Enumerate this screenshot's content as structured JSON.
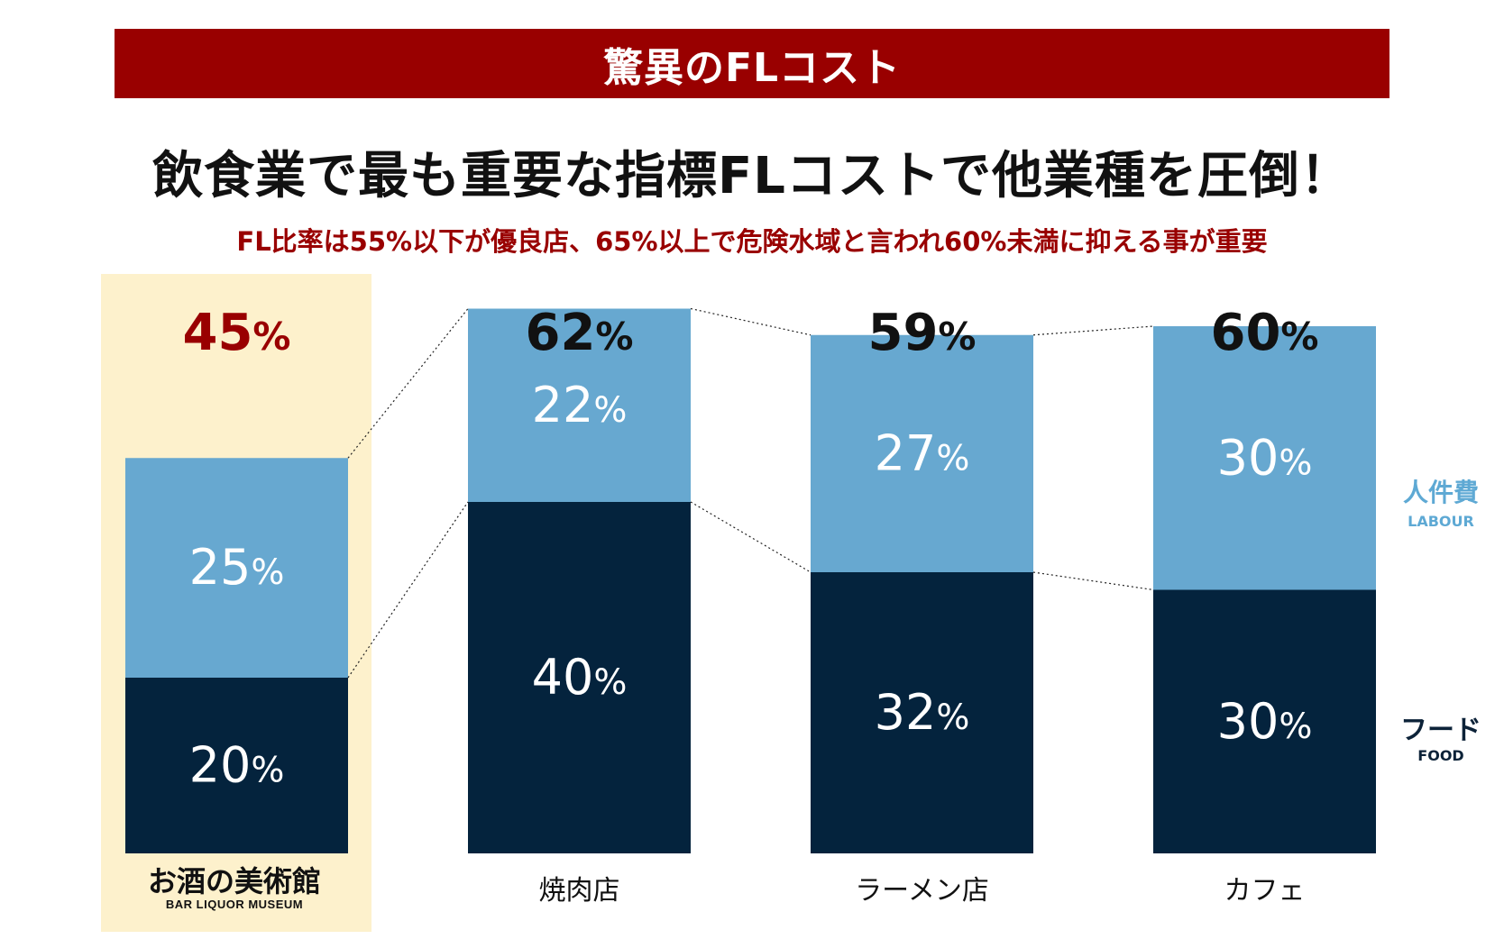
{
  "banner": {
    "title": "驚異のFLコスト"
  },
  "headline": "飲食業で最も重要な指標FLコストで他業種を圧倒！",
  "subheadline": "FL比率は55%以下が優良店、65%以上で危険水域と言われ60%未満に抑える事が重要",
  "legend": {
    "labour_jp": "人件費",
    "labour_en": "LABOUR",
    "food_jp": "フード",
    "food_en": "FOOD"
  },
  "logo": {
    "main": "お酒の美術館",
    "sub": "BAR LIQUOR MUSEUM"
  },
  "colors": {
    "labour": "#67a8d0",
    "food": "#04233d",
    "accent": "#990000",
    "highlight": "#fdf1cc"
  },
  "chart_data": {
    "type": "bar",
    "stacked": true,
    "categories": [
      "お酒の美術館",
      "焼肉店",
      "ラーメン店",
      "カフェ"
    ],
    "totals": [
      "45%",
      "62%",
      "59%",
      "60%"
    ],
    "highlighted_category": 0,
    "series": [
      {
        "name": "フード",
        "values": [
          20,
          40,
          32,
          30
        ]
      },
      {
        "name": "人件費",
        "values": [
          25,
          22,
          27,
          30
        ]
      }
    ]
  }
}
